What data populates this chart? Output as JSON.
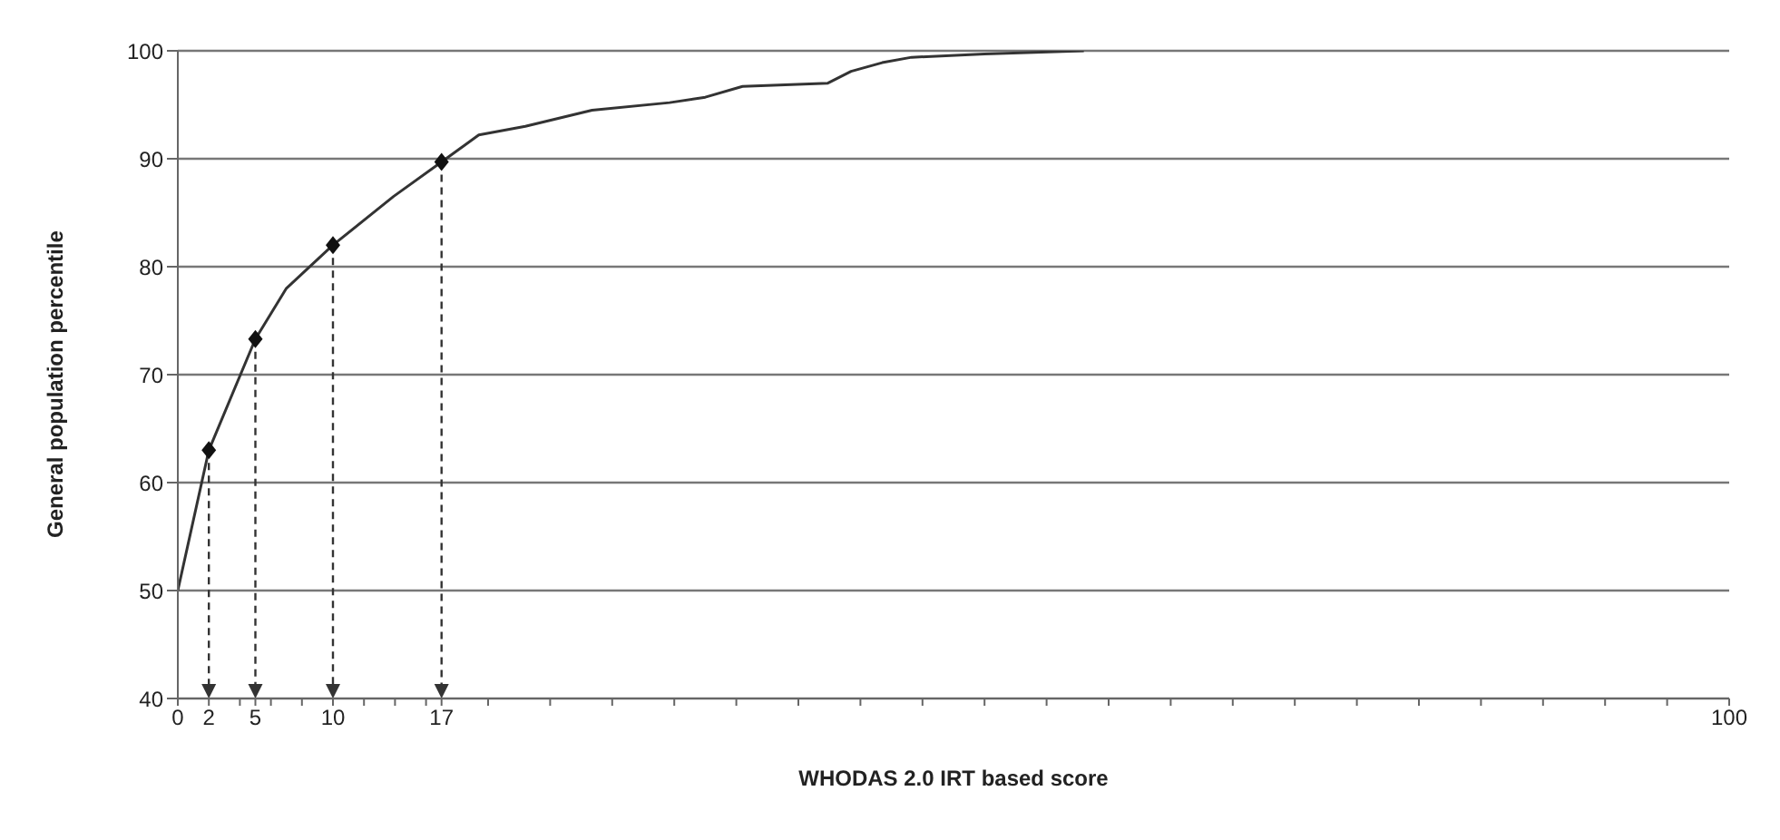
{
  "chart_data": {
    "type": "line",
    "xlabel": "WHODAS 2.0 IRT based score",
    "ylabel": "General population percentile",
    "series": [
      {
        "color": "#333333",
        "marker": "none",
        "x": [
          0,
          2,
          5,
          7,
          10,
          13.9,
          17,
          19.4,
          22.4,
          26.7,
          31.7,
          34,
          36.4,
          41.9,
          43.4,
          45.4,
          47.3,
          52,
          58.4
        ],
        "values": [
          50,
          63,
          73.3,
          78,
          82,
          86.5,
          89.7,
          92.2,
          93,
          94.5,
          95.2,
          95.7,
          96.7,
          97,
          98.1,
          98.9,
          99.4,
          99.7,
          100
        ]
      },
      {
        "type": "scatter",
        "color": "#111111",
        "marker": "diamond",
        "x": [
          2,
          5,
          10,
          17
        ],
        "values": [
          63,
          73.3,
          82,
          89.7
        ]
      }
    ],
    "ref_lines": [
      {
        "axis": "x",
        "value": 2,
        "line_style": "dashed",
        "color": "#333333"
      },
      {
        "axis": "x",
        "value": 5,
        "line_style": "dashed",
        "color": "#333333"
      },
      {
        "axis": "x",
        "value": 10,
        "line_style": "dashed",
        "color": "#333333"
      },
      {
        "axis": "x",
        "value": 17,
        "line_style": "dashed",
        "color": "#333333"
      }
    ],
    "xlim": [
      0,
      100
    ],
    "xticks": [
      0,
      2,
      {
        "value": 4,
        "label": null
      },
      5,
      {
        "value": 6,
        "label": null
      },
      {
        "value": 8,
        "label": null
      },
      10,
      {
        "value": 12,
        "label": null
      },
      {
        "value": 14,
        "label": null
      },
      {
        "value": 16,
        "label": null
      },
      17,
      {
        "value": 20,
        "label": null
      },
      {
        "value": 24,
        "label": null
      },
      {
        "value": 28,
        "label": null
      },
      {
        "value": 32,
        "label": null
      },
      {
        "value": 36,
        "label": null
      },
      {
        "value": 40,
        "label": null
      },
      {
        "value": 44,
        "label": null
      },
      {
        "value": 48,
        "label": null
      },
      {
        "value": 52,
        "label": null
      },
      {
        "value": 56,
        "label": null
      },
      {
        "value": 60,
        "label": null
      },
      {
        "value": 64,
        "label": null
      },
      {
        "value": 68,
        "label": null
      },
      {
        "value": 72,
        "label": null
      },
      {
        "value": 76,
        "label": null
      },
      {
        "value": 80,
        "label": null
      },
      {
        "value": 84,
        "label": null
      },
      {
        "value": 88,
        "label": null
      },
      {
        "value": 92,
        "label": null
      },
      {
        "value": 96,
        "label": null
      },
      100
    ],
    "ylim": [
      40,
      100
    ],
    "yticks": [
      40,
      50,
      60,
      70,
      80,
      90,
      100
    ],
    "grid": "y"
  }
}
